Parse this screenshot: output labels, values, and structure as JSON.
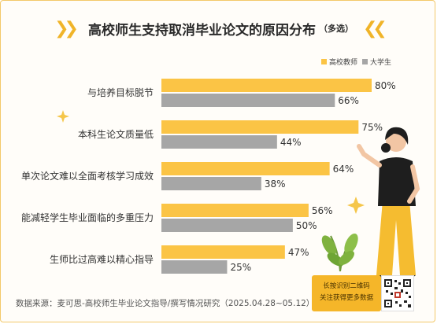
{
  "header": {
    "title": "高校师生支持取消毕业论文的原因分布",
    "note": "（多选）"
  },
  "legend": [
    {
      "name": "高校教师",
      "color": "#fbc445"
    },
    {
      "name": "大学生",
      "color": "#a6a6a6"
    }
  ],
  "chart_data": {
    "type": "bar",
    "orientation": "horizontal",
    "categories": [
      "与培养目标脱节",
      "本科生论文质量低",
      "单次论文难以全面考核学习成效",
      "能减轻学生毕业面临的多重压力",
      "生师比过高难以精心指导"
    ],
    "series": [
      {
        "name": "高校教师",
        "color": "#fbc445",
        "values": [
          80,
          75,
          64,
          56,
          47
        ],
        "labels": [
          "80%",
          "75%",
          "64%",
          "56%",
          "47%"
        ]
      },
      {
        "name": "大学生",
        "color": "#a6a6a6",
        "values": [
          66,
          44,
          38,
          50,
          25
        ],
        "labels": [
          "66%",
          "44%",
          "38%",
          "50%",
          "25%"
        ]
      }
    ],
    "xlim": [
      0,
      80
    ],
    "legend_position": "top-right"
  },
  "footer": {
    "source": "数据来源：麦可思-高校师生毕业论文指导/撰写情况研究（2025.04.28~05.12）",
    "qr_line1": "长按识别二维码",
    "qr_line2": "关注获得更多数据"
  }
}
